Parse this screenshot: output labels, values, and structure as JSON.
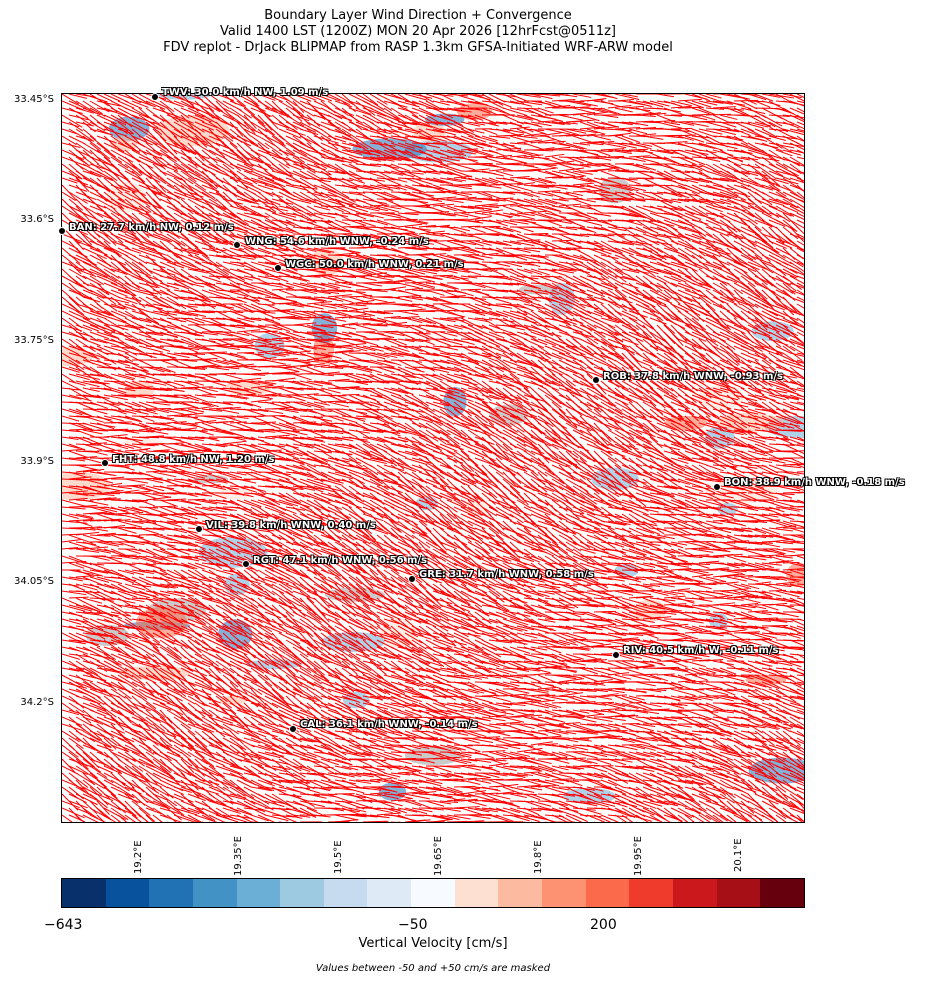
{
  "title": {
    "line1": "Boundary Layer Wind Direction + Convergence",
    "line2": "Valid 1400 LST (1200Z) MON 20 Apr 2026 [12hrFcst@0511z]",
    "line3": "FDV replot - DrJack BLIPMAP from RASP 1.3km GFSA-Initiated WRF-ARW model"
  },
  "lat_labels": [
    "33.45°S",
    "33.6°S",
    "33.75°S",
    "33.9°S",
    "34.05°S",
    "34.2°S"
  ],
  "lon_labels": [
    "19.2°E",
    "19.35°E",
    "19.5°E",
    "19.65°E",
    "19.8°E",
    "19.95°E",
    "20.1°E"
  ],
  "stations": [
    {
      "label": "TWV: 30.0 km/h NW, 1.09 m/s"
    },
    {
      "label": "BAN: 27.7 km/h NW, 0.12 m/s"
    },
    {
      "label": "WNG: 54.6 km/h WNW, -0.24 m/s"
    },
    {
      "label": "WGC: 50.0 km/h WNW, 0.21 m/s"
    },
    {
      "label": "ROB: 37.8 km/h WNW, -0.93 m/s"
    },
    {
      "label": "FHT: 48.8 km/h NW, 1.20 m/s"
    },
    {
      "label": "BON: 38.9 km/h WNW, -0.18 m/s"
    },
    {
      "label": "VIL: 39.8 km/h WNW, 0.40 m/s"
    },
    {
      "label": "RGT: 47.1 km/h WNW, 0.56 m/s"
    },
    {
      "label": "GRE: 31.7 km/h WNW, 0.58 m/s"
    },
    {
      "label": "RIV: 40.5 km/h W, -0.11 m/s"
    },
    {
      "label": "CAL: 36.1 km/h WNW, -0.14 m/s"
    }
  ],
  "colorbar": {
    "colors": [
      "#08306b",
      "#08519c",
      "#2171b5",
      "#4292c6",
      "#6baed6",
      "#9ecae1",
      "#c6dbef",
      "#deebf7",
      "#f7fbff",
      "#fee0d2",
      "#fcbba1",
      "#fc9272",
      "#fb6a4a",
      "#ef3b2c",
      "#cb181d",
      "#a50f15",
      "#67000d"
    ],
    "ticks": [
      "−643",
      "−50",
      "200"
    ],
    "label": "Vertical Velocity [cm/s]",
    "note": "Values between -50 and +50 cm/s are masked"
  },
  "wind_color": "#ff0000"
}
